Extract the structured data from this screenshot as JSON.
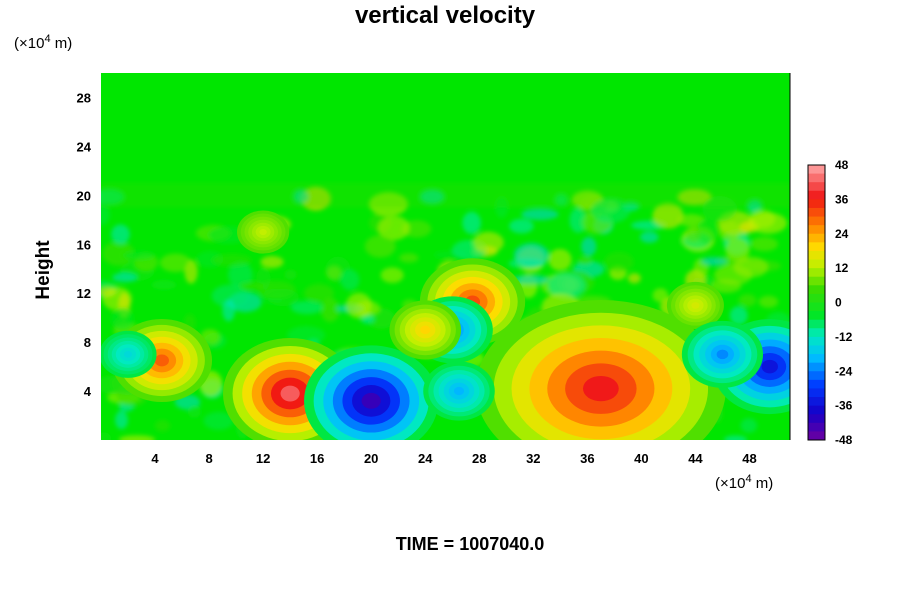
{
  "chart_data": {
    "type": "heatmap",
    "title": "vertical velocity",
    "xlabel": "",
    "ylabel": "Height",
    "x_unit_prefix": "(×10",
    "x_unit_exp": "4",
    "x_unit_suffix": " m)",
    "y_unit_prefix": "(×10",
    "y_unit_exp": "4",
    "y_unit_suffix": " m)",
    "xlim": [
      0,
      51
    ],
    "ylim": [
      0,
      30
    ],
    "x_ticks": [
      "4",
      "8",
      "12",
      "16",
      "20",
      "24",
      "28",
      "32",
      "36",
      "40",
      "44",
      "48"
    ],
    "x_tick_values": [
      4,
      8,
      12,
      16,
      20,
      24,
      28,
      32,
      36,
      40,
      44,
      48
    ],
    "y_ticks": [
      "4",
      "8",
      "12",
      "16",
      "20",
      "24",
      "28"
    ],
    "y_tick_values": [
      4,
      8,
      12,
      16,
      20,
      24,
      28
    ],
    "colorbar": {
      "min": -48,
      "max": 48,
      "ticks": [
        "48",
        "36",
        "24",
        "12",
        "0",
        "-12",
        "-24",
        "-36",
        "-48"
      ],
      "tick_values": [
        48,
        36,
        24,
        12,
        0,
        -12,
        -24,
        -36,
        -48
      ]
    },
    "features": [
      {
        "x": 14,
        "y": 3.8,
        "value": 48
      },
      {
        "x": 37,
        "y": 4.2,
        "value": 42
      },
      {
        "x": 20,
        "y": 3.2,
        "value": -48
      },
      {
        "x": 49.5,
        "y": 6,
        "value": -40
      },
      {
        "x": 4.5,
        "y": 6.5,
        "value": 34
      },
      {
        "x": 27.5,
        "y": 11.3,
        "value": 36
      },
      {
        "x": 26,
        "y": 9,
        "value": -26
      },
      {
        "x": 24,
        "y": 9,
        "value": 22
      },
      {
        "x": 26.5,
        "y": 4,
        "value": -22
      },
      {
        "x": 2,
        "y": 7,
        "value": -16
      },
      {
        "x": 12,
        "y": 17,
        "value": 14
      },
      {
        "x": 44,
        "y": 11,
        "value": 16
      },
      {
        "x": 46,
        "y": 7,
        "value": -26
      }
    ],
    "grid": false
  },
  "footer": {
    "time_label": "TIME = 1007040.0"
  }
}
